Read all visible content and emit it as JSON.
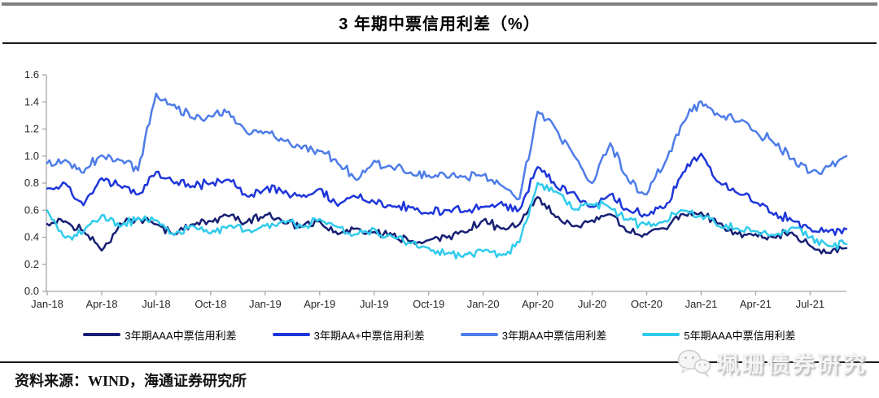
{
  "header": {
    "title": "3 年期中票信用利差（%）"
  },
  "footer": {
    "source": "资料来源：WIND，海通证券研究所"
  },
  "watermark": {
    "text": "珮珊债券研究",
    "icon": "wechat-icon"
  },
  "colors": {
    "aaa_3y": "#161F73",
    "aa_plus_3y": "#1E36D9",
    "aa_3y": "#4E7CE8",
    "aaa_5y": "#30CBEC",
    "axis": "#a6a6a6",
    "tick_label": "#262626",
    "rule": "#1a1a1a",
    "top_bar": "#7f7f7f"
  },
  "chart_data": {
    "type": "line",
    "title": "3 年期中票信用利差（%）",
    "xlabel": "",
    "ylabel": "",
    "ylim": [
      0.0,
      1.6
    ],
    "y_ticks": [
      0.0,
      0.2,
      0.4,
      0.6,
      0.8,
      1.0,
      1.2,
      1.4,
      1.6
    ],
    "grid": false,
    "legend_position": "bottom",
    "x_tick_every": 3,
    "x": [
      "Jan-18",
      "Feb-18",
      "Mar-18",
      "Apr-18",
      "May-18",
      "Jun-18",
      "Jul-18",
      "Aug-18",
      "Sep-18",
      "Oct-18",
      "Nov-18",
      "Dec-18",
      "Jan-19",
      "Feb-19",
      "Mar-19",
      "Apr-19",
      "May-19",
      "Jun-19",
      "Jul-19",
      "Aug-19",
      "Sep-19",
      "Oct-19",
      "Nov-19",
      "Dec-19",
      "Jan-20",
      "Feb-20",
      "Mar-20",
      "Apr-20",
      "May-20",
      "Jun-20",
      "Jul-20",
      "Aug-20",
      "Sep-20",
      "Oct-20",
      "Nov-20",
      "Dec-20",
      "Jan-21",
      "Feb-21",
      "Mar-21",
      "Apr-21",
      "May-21",
      "Jun-21",
      "Jul-21",
      "Aug-21",
      "Sep-21"
    ],
    "series": [
      {
        "name": "3年期AAA中票信用利差",
        "color": "#161F73",
        "values": [
          0.5,
          0.52,
          0.45,
          0.3,
          0.5,
          0.54,
          0.5,
          0.42,
          0.5,
          0.52,
          0.56,
          0.51,
          0.57,
          0.51,
          0.48,
          0.52,
          0.42,
          0.46,
          0.44,
          0.42,
          0.37,
          0.38,
          0.4,
          0.43,
          0.53,
          0.46,
          0.5,
          0.7,
          0.55,
          0.48,
          0.52,
          0.57,
          0.44,
          0.42,
          0.46,
          0.57,
          0.58,
          0.5,
          0.42,
          0.42,
          0.4,
          0.44,
          0.34,
          0.28,
          0.32
        ]
      },
      {
        "name": "3年期AA+中票信用利差",
        "color": "#1E36D9",
        "values": [
          0.76,
          0.8,
          0.64,
          0.84,
          0.78,
          0.72,
          0.88,
          0.8,
          0.78,
          0.8,
          0.83,
          0.7,
          0.76,
          0.73,
          0.7,
          0.76,
          0.63,
          0.7,
          0.66,
          0.63,
          0.62,
          0.58,
          0.6,
          0.6,
          0.62,
          0.66,
          0.6,
          0.92,
          0.78,
          0.73,
          0.62,
          0.72,
          0.6,
          0.56,
          0.62,
          0.88,
          1.02,
          0.8,
          0.73,
          0.66,
          0.57,
          0.53,
          0.46,
          0.44,
          0.46
        ]
      },
      {
        "name": "3年期AA中票信用利差",
        "color": "#4E7CE8",
        "values": [
          0.95,
          0.97,
          0.88,
          1.01,
          0.97,
          0.9,
          1.46,
          1.38,
          1.28,
          1.29,
          1.33,
          1.17,
          1.18,
          1.12,
          1.06,
          1.04,
          0.95,
          0.82,
          0.97,
          0.91,
          0.88,
          0.86,
          0.84,
          0.85,
          0.86,
          0.78,
          0.68,
          1.33,
          1.2,
          1.0,
          0.8,
          1.1,
          0.82,
          0.72,
          0.95,
          1.25,
          1.4,
          1.3,
          1.26,
          1.18,
          1.1,
          0.98,
          0.88,
          0.92,
          1.0
        ]
      },
      {
        "name": "5年期AAA中票信用利差",
        "color": "#30CBEC",
        "values": [
          0.6,
          0.4,
          0.44,
          0.56,
          0.48,
          0.54,
          0.53,
          0.42,
          0.48,
          0.43,
          0.48,
          0.45,
          0.48,
          0.52,
          0.48,
          0.53,
          0.47,
          0.42,
          0.46,
          0.4,
          0.36,
          0.32,
          0.28,
          0.27,
          0.3,
          0.27,
          0.36,
          0.8,
          0.74,
          0.6,
          0.64,
          0.62,
          0.53,
          0.49,
          0.52,
          0.6,
          0.56,
          0.48,
          0.46,
          0.44,
          0.42,
          0.47,
          0.4,
          0.34,
          0.35
        ]
      }
    ]
  }
}
